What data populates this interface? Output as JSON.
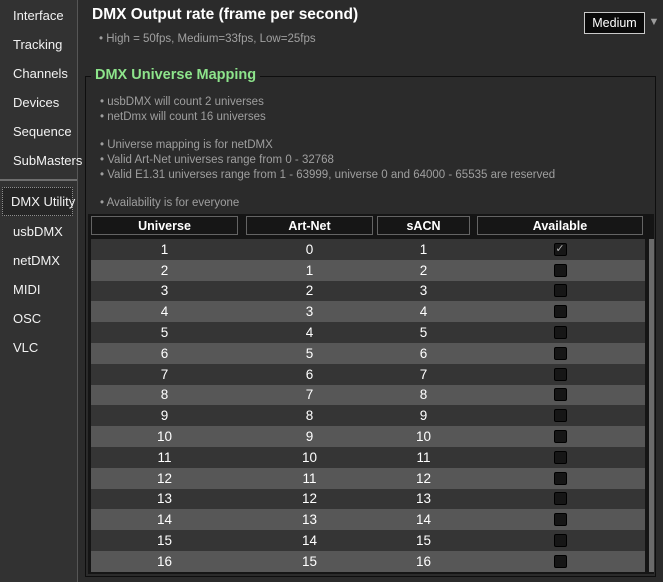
{
  "colors": {
    "accent_green": "#8de48b",
    "row_odd": "#353535",
    "row_even": "#575757",
    "header_bg": "#161616"
  },
  "sidebar": {
    "groups": [
      {
        "items": [
          {
            "label": "Interface",
            "selected": false
          },
          {
            "label": "Tracking",
            "selected": false
          },
          {
            "label": "Channels",
            "selected": false
          },
          {
            "label": "Devices",
            "selected": false
          },
          {
            "label": "Sequence",
            "selected": false
          },
          {
            "label": "SubMasters",
            "selected": false
          }
        ]
      },
      {
        "items": [
          {
            "label": "DMX Utility",
            "selected": true
          },
          {
            "label": "usbDMX",
            "selected": false
          },
          {
            "label": "netDMX",
            "selected": false
          },
          {
            "label": "MIDI",
            "selected": false
          },
          {
            "label": "OSC",
            "selected": false
          },
          {
            "label": "VLC",
            "selected": false
          }
        ]
      }
    ]
  },
  "header": {
    "title": "DMX Output rate (frame per second)",
    "rate_note": "• High = 50fps, Medium=33fps, Low=25fps",
    "dropdown_value": "Medium",
    "dropdown_arrow_icon": "▼"
  },
  "mapping": {
    "title": "DMX Universe Mapping",
    "notes": [
      "• usbDMX will count 2 universes",
      "• netDmx will count 16 universes",
      "",
      "• Universe mapping is for netDMX",
      "• Valid Art-Net universes range from 0 - 32768",
      "• Valid E1.31 universes range from 1 - 63999, universe 0 and 64000 - 65535 are reserved",
      "",
      "• Availability is for everyone"
    ]
  },
  "table": {
    "columns": [
      "Universe",
      "Art-Net",
      "sACN",
      "Available"
    ],
    "check_glyph": "✓",
    "rows": [
      {
        "universe": 1,
        "artnet": 0,
        "sacn": 1,
        "available": true
      },
      {
        "universe": 2,
        "artnet": 1,
        "sacn": 2,
        "available": false
      },
      {
        "universe": 3,
        "artnet": 2,
        "sacn": 3,
        "available": false
      },
      {
        "universe": 4,
        "artnet": 3,
        "sacn": 4,
        "available": false
      },
      {
        "universe": 5,
        "artnet": 4,
        "sacn": 5,
        "available": false
      },
      {
        "universe": 6,
        "artnet": 5,
        "sacn": 6,
        "available": false
      },
      {
        "universe": 7,
        "artnet": 6,
        "sacn": 7,
        "available": false
      },
      {
        "universe": 8,
        "artnet": 7,
        "sacn": 8,
        "available": false
      },
      {
        "universe": 9,
        "artnet": 8,
        "sacn": 9,
        "available": false
      },
      {
        "universe": 10,
        "artnet": 9,
        "sacn": 10,
        "available": false
      },
      {
        "universe": 11,
        "artnet": 10,
        "sacn": 11,
        "available": false
      },
      {
        "universe": 12,
        "artnet": 11,
        "sacn": 12,
        "available": false
      },
      {
        "universe": 13,
        "artnet": 12,
        "sacn": 13,
        "available": false
      },
      {
        "universe": 14,
        "artnet": 13,
        "sacn": 14,
        "available": false
      },
      {
        "universe": 15,
        "artnet": 14,
        "sacn": 15,
        "available": false
      },
      {
        "universe": 16,
        "artnet": 15,
        "sacn": 16,
        "available": false
      }
    ]
  }
}
